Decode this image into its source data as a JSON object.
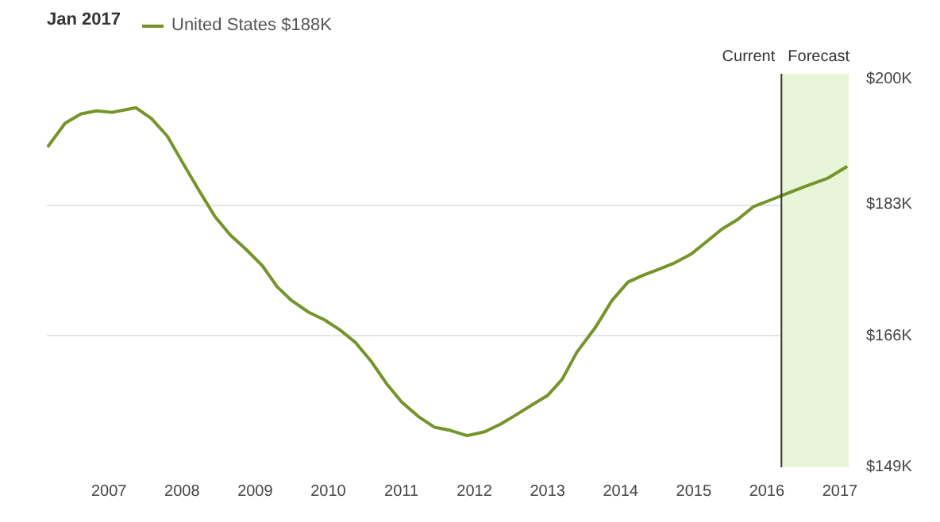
{
  "chart_data": {
    "type": "line",
    "title": "Jan 2017",
    "x": [
      2006.16,
      2006.4,
      2006.62,
      2006.83,
      2007.04,
      2007.26,
      2007.37,
      2007.58,
      2007.8,
      2008.0,
      2008.23,
      2008.45,
      2008.66,
      2008.88,
      2009.1,
      2009.3,
      2009.5,
      2009.73,
      2009.95,
      2010.16,
      2010.37,
      2010.59,
      2010.8,
      2011.0,
      2011.23,
      2011.45,
      2011.66,
      2011.9,
      2012.14,
      2012.36,
      2012.57,
      2012.79,
      2013.0,
      2013.2,
      2013.4,
      2013.66,
      2013.88,
      2014.1,
      2014.31,
      2014.53,
      2014.74,
      2014.96,
      2015.17,
      2015.39,
      2015.6,
      2015.82,
      2016.04,
      2016.2,
      2016.5,
      2016.84,
      2017.1
    ],
    "series": [
      {
        "name": "United States $188K",
        "color": "#76942a",
        "values": [
          190.5,
          193.6,
          194.8,
          195.2,
          195.0,
          195.4,
          195.6,
          194.2,
          191.9,
          188.6,
          184.9,
          181.5,
          179.1,
          177.2,
          175.1,
          172.4,
          170.6,
          169.1,
          168.1,
          166.8,
          165.2,
          162.7,
          159.8,
          157.5,
          155.6,
          154.2,
          153.8,
          153.1,
          153.6,
          154.6,
          155.8,
          157.1,
          158.3,
          160.4,
          163.9,
          167.2,
          170.6,
          173.0,
          173.9,
          174.7,
          175.5,
          176.6,
          178.2,
          179.9,
          181.1,
          182.8,
          183.6,
          184.2,
          185.3,
          186.5,
          188.0
        ]
      }
    ],
    "xlim": [
      2006.15,
      2017.12
    ],
    "xticks": [
      2007,
      2008,
      2009,
      2010,
      2011,
      2012,
      2013,
      2014,
      2015,
      2016,
      2017
    ],
    "ylim": [
      149,
      200
    ],
    "yticks": [
      {
        "value": 149,
        "label": "$149K"
      },
      {
        "value": 166,
        "label": "$166K"
      },
      {
        "value": 183,
        "label": "$183K"
      },
      {
        "value": 200,
        "label": "$200K"
      }
    ],
    "ref_lines": [
      {
        "axis": "x",
        "value": 2016.2,
        "label": "Current",
        "color": "#333333"
      }
    ],
    "bands": [
      {
        "axis": "x",
        "from": 2016.2,
        "to": 2017.12,
        "label": "Forecast",
        "color": "#e8f5d8"
      }
    ],
    "grid": "y",
    "legend": "top left",
    "marker": "none",
    "line_style": "solid"
  }
}
